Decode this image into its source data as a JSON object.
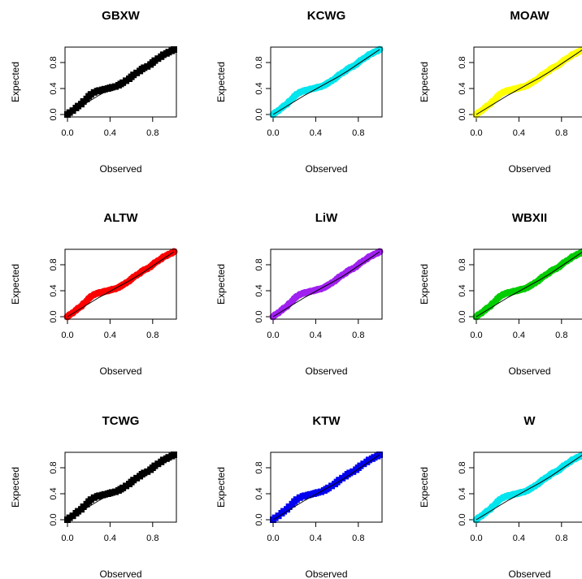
{
  "chart_data": [
    {
      "type": "scatter",
      "title": "GBXW",
      "xlabel": "Observed",
      "ylabel": "Expected",
      "xlim": [
        0,
        1
      ],
      "ylim": [
        0,
        1
      ],
      "x_ticks": [
        "0.0",
        "0.4",
        "0.8"
      ],
      "y_ticks": [
        "0.0",
        "0.4",
        "0.8"
      ],
      "point_color": "#000000",
      "marker": "square",
      "grid": false,
      "reference_curve": true
    },
    {
      "type": "scatter",
      "title": "KCWG",
      "xlabel": "Observed",
      "ylabel": "Expected",
      "xlim": [
        0,
        1
      ],
      "ylim": [
        0,
        1
      ],
      "x_ticks": [
        "0.0",
        "0.4",
        "0.8"
      ],
      "y_ticks": [
        "0.0",
        "0.4",
        "0.8"
      ],
      "point_color": "#00e5ee",
      "marker": "circle",
      "grid": false,
      "reference_curve": true
    },
    {
      "type": "scatter",
      "title": "MOAW",
      "xlabel": "Observed",
      "ylabel": "Expected",
      "xlim": [
        0,
        1
      ],
      "ylim": [
        0,
        1
      ],
      "x_ticks": [
        "0.0",
        "0.4",
        "0.8"
      ],
      "y_ticks": [
        "0.0",
        "0.4",
        "0.8"
      ],
      "point_color": "#ffff00",
      "marker": "circle",
      "grid": false,
      "reference_curve": true
    },
    {
      "type": "scatter",
      "title": "ALTW",
      "xlabel": "Observed",
      "ylabel": "Expected",
      "xlim": [
        0,
        1
      ],
      "ylim": [
        0,
        1
      ],
      "x_ticks": [
        "0.0",
        "0.4",
        "0.8"
      ],
      "y_ticks": [
        "0.0",
        "0.4",
        "0.8"
      ],
      "point_color": "#ff0000",
      "marker": "circle",
      "grid": false,
      "reference_curve": true
    },
    {
      "type": "scatter",
      "title": "LiW",
      "xlabel": "Observed",
      "ylabel": "Expected",
      "xlim": [
        0,
        1
      ],
      "ylim": [
        0,
        1
      ],
      "x_ticks": [
        "0.0",
        "0.4",
        "0.8"
      ],
      "y_ticks": [
        "0.0",
        "0.4",
        "0.8"
      ],
      "point_color": "#a020f0",
      "marker": "circle",
      "grid": false,
      "reference_curve": true
    },
    {
      "type": "scatter",
      "title": "WBXII",
      "xlabel": "Observed",
      "ylabel": "Expected",
      "xlim": [
        0,
        1
      ],
      "ylim": [
        0,
        1
      ],
      "x_ticks": [
        "0.0",
        "0.4",
        "0.8"
      ],
      "y_ticks": [
        "0.0",
        "0.4",
        "0.8"
      ],
      "point_color": "#00cd00",
      "marker": "circle",
      "grid": false,
      "reference_curve": true
    },
    {
      "type": "scatter",
      "title": "TCWG",
      "xlabel": "Observed",
      "ylabel": "Expected",
      "xlim": [
        0,
        1
      ],
      "ylim": [
        0,
        1
      ],
      "x_ticks": [
        "0.0",
        "0.4",
        "0.8"
      ],
      "y_ticks": [
        "0.0",
        "0.4",
        "0.8"
      ],
      "point_color": "#000000",
      "marker": "square",
      "grid": false,
      "reference_curve": true
    },
    {
      "type": "scatter",
      "title": "KTW",
      "xlabel": "Observed",
      "ylabel": "Expected",
      "xlim": [
        0,
        1
      ],
      "ylim": [
        0,
        1
      ],
      "x_ticks": [
        "0.0",
        "0.4",
        "0.8"
      ],
      "y_ticks": [
        "0.0",
        "0.4",
        "0.8"
      ],
      "point_color": "#0000ee",
      "marker": "square",
      "grid": false,
      "reference_curve": true
    },
    {
      "type": "scatter",
      "title": "W",
      "xlabel": "Observed",
      "ylabel": "Expected",
      "xlim": [
        0,
        1
      ],
      "ylim": [
        0,
        1
      ],
      "x_ticks": [
        "0.0",
        "0.4",
        "0.8"
      ],
      "y_ticks": [
        "0.0",
        "0.4",
        "0.8"
      ],
      "point_color": "#00e5ee",
      "marker": "circle",
      "grid": false,
      "reference_curve": true
    }
  ],
  "pp_points": {
    "x": [
      0.0,
      0.02,
      0.05,
      0.08,
      0.1,
      0.13,
      0.15,
      0.18,
      0.2,
      0.22,
      0.25,
      0.28,
      0.3,
      0.33,
      0.35,
      0.38,
      0.4,
      0.42,
      0.45,
      0.48,
      0.5,
      0.52,
      0.55,
      0.58,
      0.6,
      0.62,
      0.65,
      0.68,
      0.7,
      0.72,
      0.75,
      0.78,
      0.8,
      0.82,
      0.85,
      0.88,
      0.9,
      0.93,
      0.95,
      0.98,
      1.0
    ],
    "y": [
      0.0,
      0.03,
      0.06,
      0.1,
      0.13,
      0.16,
      0.2,
      0.24,
      0.28,
      0.31,
      0.34,
      0.36,
      0.37,
      0.38,
      0.39,
      0.4,
      0.41,
      0.42,
      0.43,
      0.45,
      0.47,
      0.49,
      0.52,
      0.55,
      0.58,
      0.61,
      0.64,
      0.67,
      0.7,
      0.72,
      0.74,
      0.77,
      0.8,
      0.83,
      0.86,
      0.89,
      0.92,
      0.94,
      0.96,
      0.98,
      1.0
    ]
  },
  "reference_curve": {
    "x": [
      0.0,
      0.1,
      0.2,
      0.3,
      0.4,
      0.5,
      0.6,
      0.7,
      0.8,
      0.9,
      1.0
    ],
    "y": [
      0.0,
      0.1,
      0.2,
      0.3,
      0.39,
      0.48,
      0.57,
      0.67,
      0.78,
      0.89,
      1.0
    ]
  }
}
